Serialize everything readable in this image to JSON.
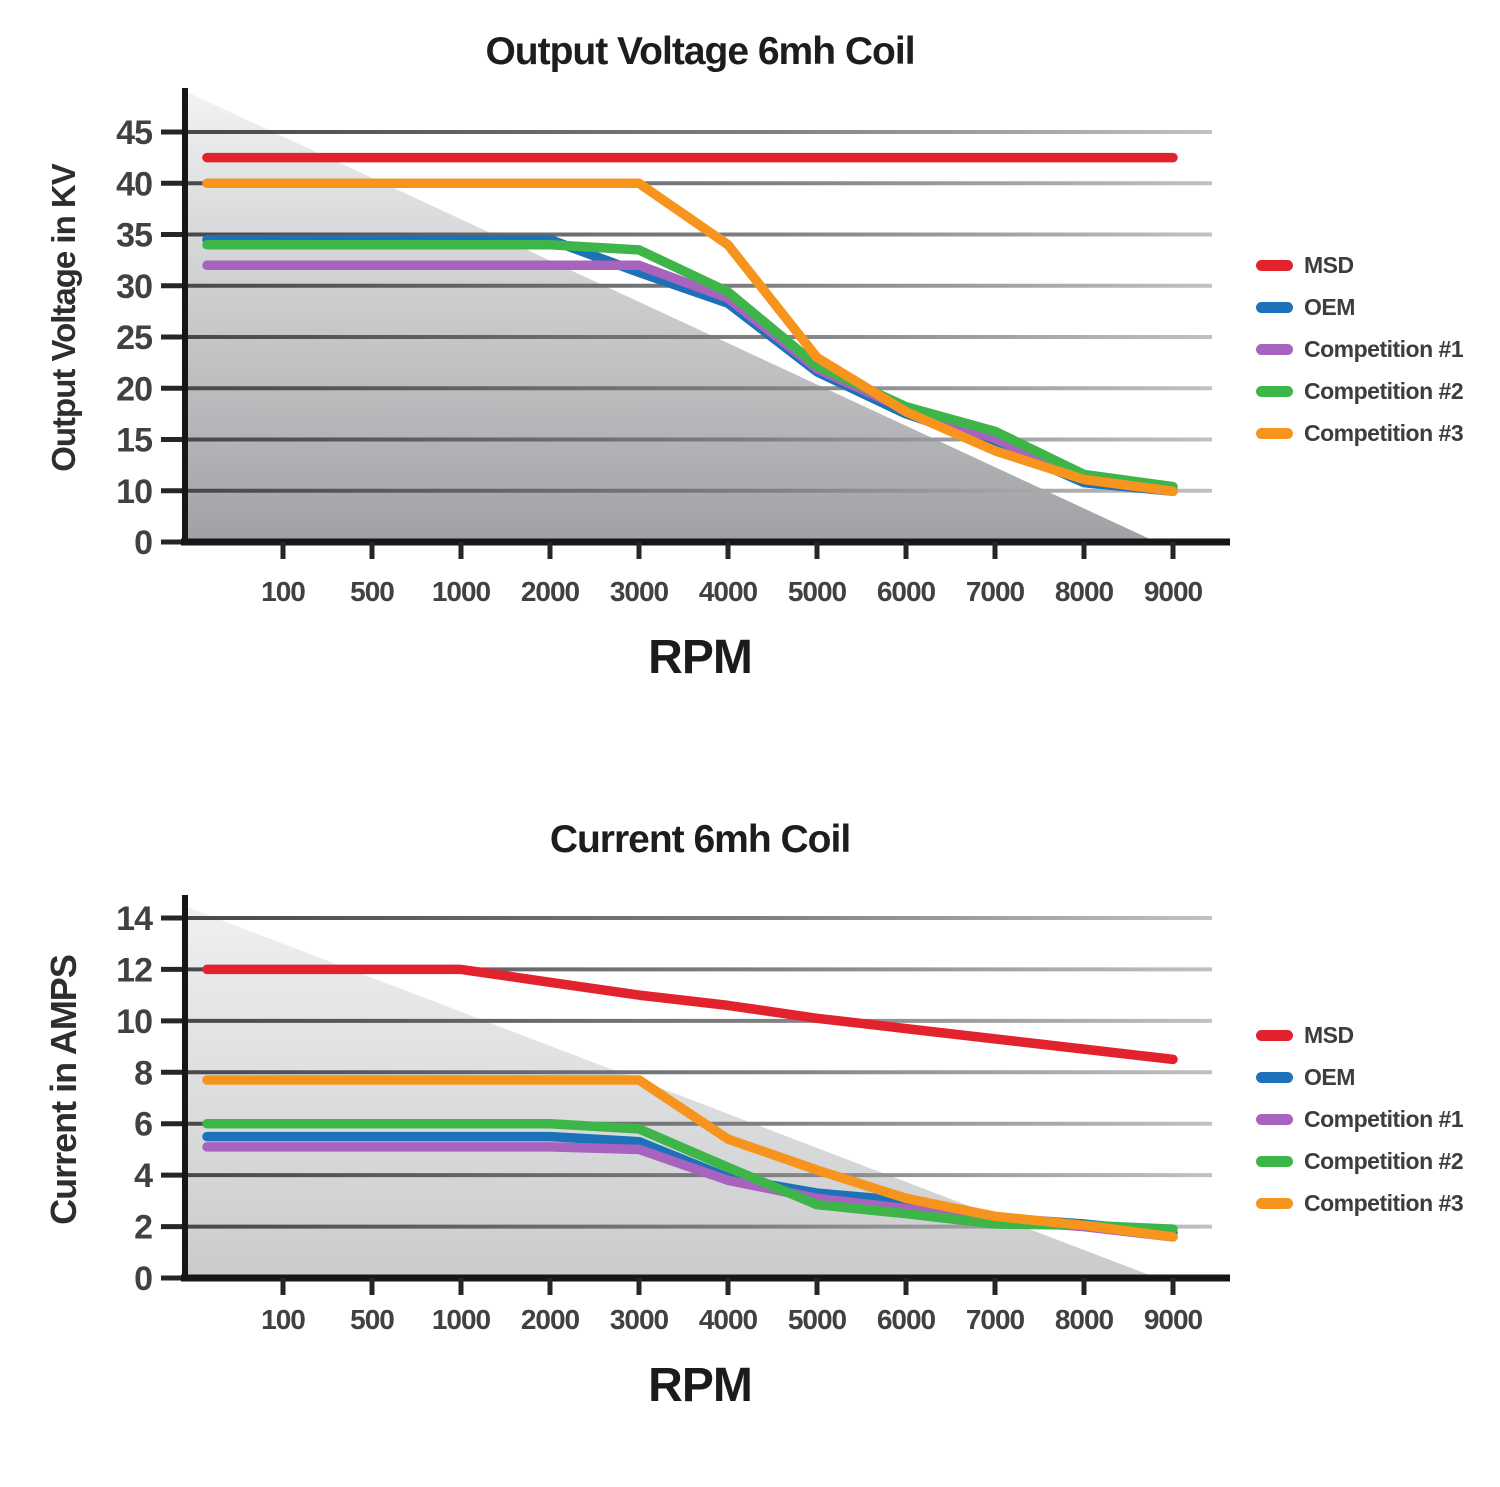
{
  "page": {
    "background": "#ffffff"
  },
  "chart_data": [
    {
      "type": "line",
      "title": "Output Voltage 6mh Coil",
      "xlabel": "RPM",
      "ylabel": "Output Voltage in KV",
      "categories": [
        "100",
        "500",
        "1000",
        "2000",
        "3000",
        "4000",
        "5000",
        "6000",
        "7000",
        "8000",
        "9000"
      ],
      "ytick_labels": [
        0,
        10,
        15,
        20,
        25,
        30,
        35,
        40,
        45
      ],
      "ylim": [
        0,
        45
      ],
      "grid": "horizontal",
      "legend_position": "right",
      "series": [
        {
          "name": "MSD",
          "color": "#e2232e",
          "values": [
            42.5,
            42.5,
            42.5,
            42.5,
            42.5,
            42.5,
            42.5,
            42.5,
            42.5,
            42.5,
            42.5
          ]
        },
        {
          "name": "OEM",
          "color": "#1d71b8",
          "values": [
            34.5,
            34.5,
            34.5,
            34.5,
            31.3,
            28.3,
            21.6,
            17.5,
            14.6,
            10.8,
            9.9
          ]
        },
        {
          "name": "Competition #1",
          "color": "#a763bd",
          "values": [
            32,
            32,
            32,
            32,
            32,
            28.8,
            21.9,
            17.9,
            15.1,
            11.1,
            10.1
          ]
        },
        {
          "name": "Competition #2",
          "color": "#3eb549",
          "values": [
            34,
            34,
            34,
            34,
            33.5,
            29.4,
            22.2,
            18.2,
            15.8,
            11.6,
            10.4
          ]
        },
        {
          "name": "Competition #3",
          "color": "#f7941e",
          "values": [
            40,
            40,
            40,
            40,
            40,
            34,
            23,
            17.7,
            13.9,
            11.1,
            9.9
          ]
        }
      ]
    },
    {
      "type": "line",
      "title": "Current 6mh Coil",
      "xlabel": "RPM",
      "ylabel": "Current in AMPS",
      "categories": [
        "100",
        "500",
        "1000",
        "2000",
        "3000",
        "4000",
        "5000",
        "6000",
        "7000",
        "8000",
        "9000"
      ],
      "ytick_labels": [
        0,
        2,
        4,
        6,
        8,
        10,
        12,
        14
      ],
      "ylim": [
        0,
        14
      ],
      "grid": "horizontal",
      "legend_position": "right",
      "series": [
        {
          "name": "MSD",
          "color": "#e2232e",
          "values": [
            12,
            12,
            12,
            11.5,
            11,
            10.6,
            10.1,
            9.7,
            9.3,
            8.9,
            8.5
          ]
        },
        {
          "name": "OEM",
          "color": "#1d71b8",
          "values": [
            5.5,
            5.5,
            5.5,
            5.5,
            5.3,
            3.9,
            3.3,
            3,
            2.35,
            2.1,
            1.75
          ]
        },
        {
          "name": "Competition #1",
          "color": "#a763bd",
          "values": [
            5.1,
            5.1,
            5.1,
            5.1,
            5,
            3.8,
            3.1,
            2.7,
            2.25,
            2,
            1.6
          ]
        },
        {
          "name": "Competition #2",
          "color": "#3eb549",
          "values": [
            6,
            6,
            6,
            6,
            5.8,
            4.3,
            2.85,
            2.5,
            2.1,
            2.05,
            1.9
          ]
        },
        {
          "name": "Competition #3",
          "color": "#f7941e",
          "values": [
            7.7,
            7.7,
            7.7,
            7.7,
            7.7,
            5.4,
            4.2,
            3.1,
            2.4,
            2.05,
            1.6
          ]
        }
      ]
    }
  ]
}
